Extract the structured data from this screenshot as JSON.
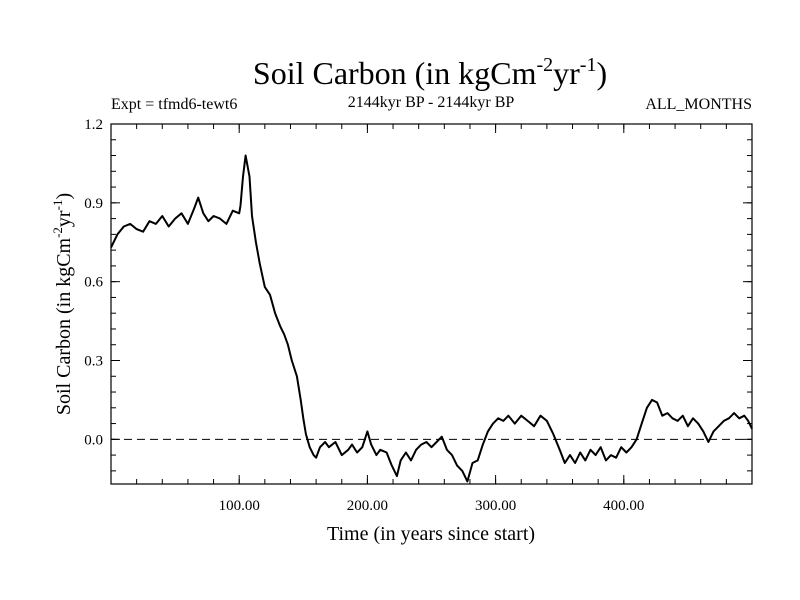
{
  "chart_data": {
    "type": "line",
    "title_main": "Soil Carbon (in kgCm",
    "title_sup1": "-2",
    "title_mid": "yr",
    "title_sup2": "-1",
    "title_end": ")",
    "expt_label": "Expt = tfmd6-tewt6",
    "period_label": "2144kyr BP - 2144kyr BP",
    "months_label": "ALL_MONTHS",
    "xlabel": "Time (in years since start)",
    "ylabel_main": "Soil Carbon (in kgCm",
    "ylabel_sup1": "-2",
    "ylabel_mid": "yr",
    "ylabel_sup2": "-1",
    "ylabel_end": ")",
    "xlim": [
      0,
      500
    ],
    "ylim": [
      -0.17,
      1.2
    ],
    "xticks": [
      {
        "value": 100,
        "label": "100.00"
      },
      {
        "value": 200,
        "label": "200.00"
      },
      {
        "value": 300,
        "label": "300.00"
      },
      {
        "value": 400,
        "label": "400.00"
      }
    ],
    "yticks": [
      {
        "value": 0.0,
        "label": "0.0"
      },
      {
        "value": 0.3,
        "label": "0.3"
      },
      {
        "value": 0.6,
        "label": "0.6"
      },
      {
        "value": 0.9,
        "label": "0.9"
      },
      {
        "value": 1.2,
        "label": "1.2"
      }
    ],
    "reference_line": {
      "y": 0.0,
      "style": "dashed"
    },
    "series": [
      {
        "name": "Soil Carbon",
        "x": [
          0,
          5,
          10,
          15,
          20,
          25,
          30,
          35,
          40,
          45,
          50,
          55,
          60,
          65,
          68,
          72,
          76,
          80,
          85,
          90,
          95,
          100,
          101,
          103,
          105,
          108,
          110,
          113,
          116,
          120,
          124,
          128,
          132,
          135,
          138,
          141,
          145,
          148,
          150,
          152,
          155,
          158,
          160,
          163,
          167,
          170,
          175,
          180,
          185,
          188,
          192,
          196,
          200,
          203,
          207,
          210,
          215,
          219,
          223,
          226,
          230,
          234,
          238,
          242,
          246,
          250,
          254,
          258,
          262,
          266,
          270,
          274,
          278,
          282,
          286,
          290,
          294,
          298,
          302,
          306,
          310,
          315,
          320,
          325,
          330,
          335,
          340,
          345,
          350,
          354,
          358,
          362,
          366,
          370,
          374,
          378,
          382,
          386,
          390,
          394,
          398,
          402,
          406,
          410,
          414,
          418,
          422,
          426,
          430,
          434,
          438,
          442,
          446,
          450,
          454,
          458,
          462,
          466,
          470,
          474,
          478,
          482,
          486,
          490,
          494,
          497,
          500
        ],
        "y": [
          0.73,
          0.78,
          0.81,
          0.82,
          0.8,
          0.79,
          0.83,
          0.82,
          0.85,
          0.81,
          0.84,
          0.86,
          0.82,
          0.88,
          0.92,
          0.86,
          0.83,
          0.85,
          0.84,
          0.82,
          0.87,
          0.86,
          0.89,
          1.0,
          1.08,
          1.0,
          0.85,
          0.75,
          0.67,
          0.58,
          0.55,
          0.48,
          0.43,
          0.4,
          0.36,
          0.3,
          0.24,
          0.15,
          0.08,
          0.02,
          -0.03,
          -0.06,
          -0.07,
          -0.03,
          -0.01,
          -0.03,
          -0.01,
          -0.06,
          -0.04,
          -0.02,
          -0.05,
          -0.03,
          0.03,
          -0.02,
          -0.06,
          -0.04,
          -0.05,
          -0.1,
          -0.14,
          -0.08,
          -0.05,
          -0.08,
          -0.04,
          -0.02,
          -0.01,
          -0.03,
          -0.01,
          0.01,
          -0.04,
          -0.06,
          -0.1,
          -0.12,
          -0.16,
          -0.09,
          -0.08,
          -0.02,
          0.03,
          0.06,
          0.08,
          0.07,
          0.09,
          0.06,
          0.09,
          0.07,
          0.05,
          0.09,
          0.07,
          0.02,
          -0.04,
          -0.09,
          -0.06,
          -0.09,
          -0.05,
          -0.08,
          -0.04,
          -0.06,
          -0.03,
          -0.08,
          -0.06,
          -0.07,
          -0.03,
          -0.05,
          -0.03,
          0.0,
          0.06,
          0.12,
          0.15,
          0.14,
          0.09,
          0.1,
          0.08,
          0.07,
          0.09,
          0.05,
          0.08,
          0.06,
          0.03,
          -0.01,
          0.03,
          0.05,
          0.07,
          0.08,
          0.1,
          0.08,
          0.09,
          0.07,
          0.04
        ]
      }
    ]
  }
}
